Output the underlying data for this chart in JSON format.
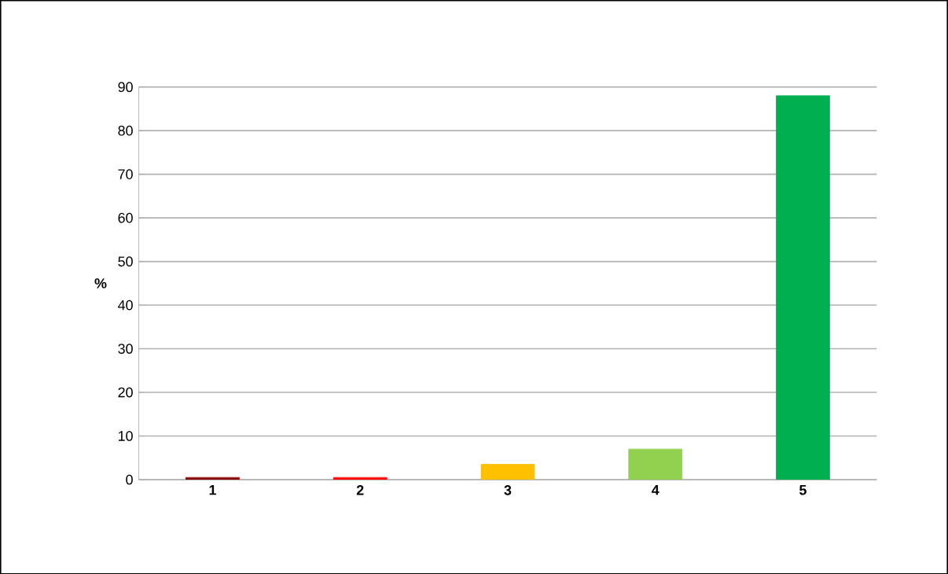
{
  "chart_data": {
    "type": "bar",
    "ylabel": "%",
    "categories": [
      "1",
      "2",
      "3",
      "4",
      "5"
    ],
    "values": [
      0.5,
      0.5,
      3.5,
      7,
      88
    ],
    "colors": [
      "#8b0000",
      "#ff0000",
      "#ffc000",
      "#92d050",
      "#00b050"
    ],
    "ylim": [
      0,
      90
    ],
    "yticks": [
      0,
      10,
      20,
      30,
      40,
      50,
      60,
      70,
      80,
      90
    ],
    "grid": "y"
  }
}
